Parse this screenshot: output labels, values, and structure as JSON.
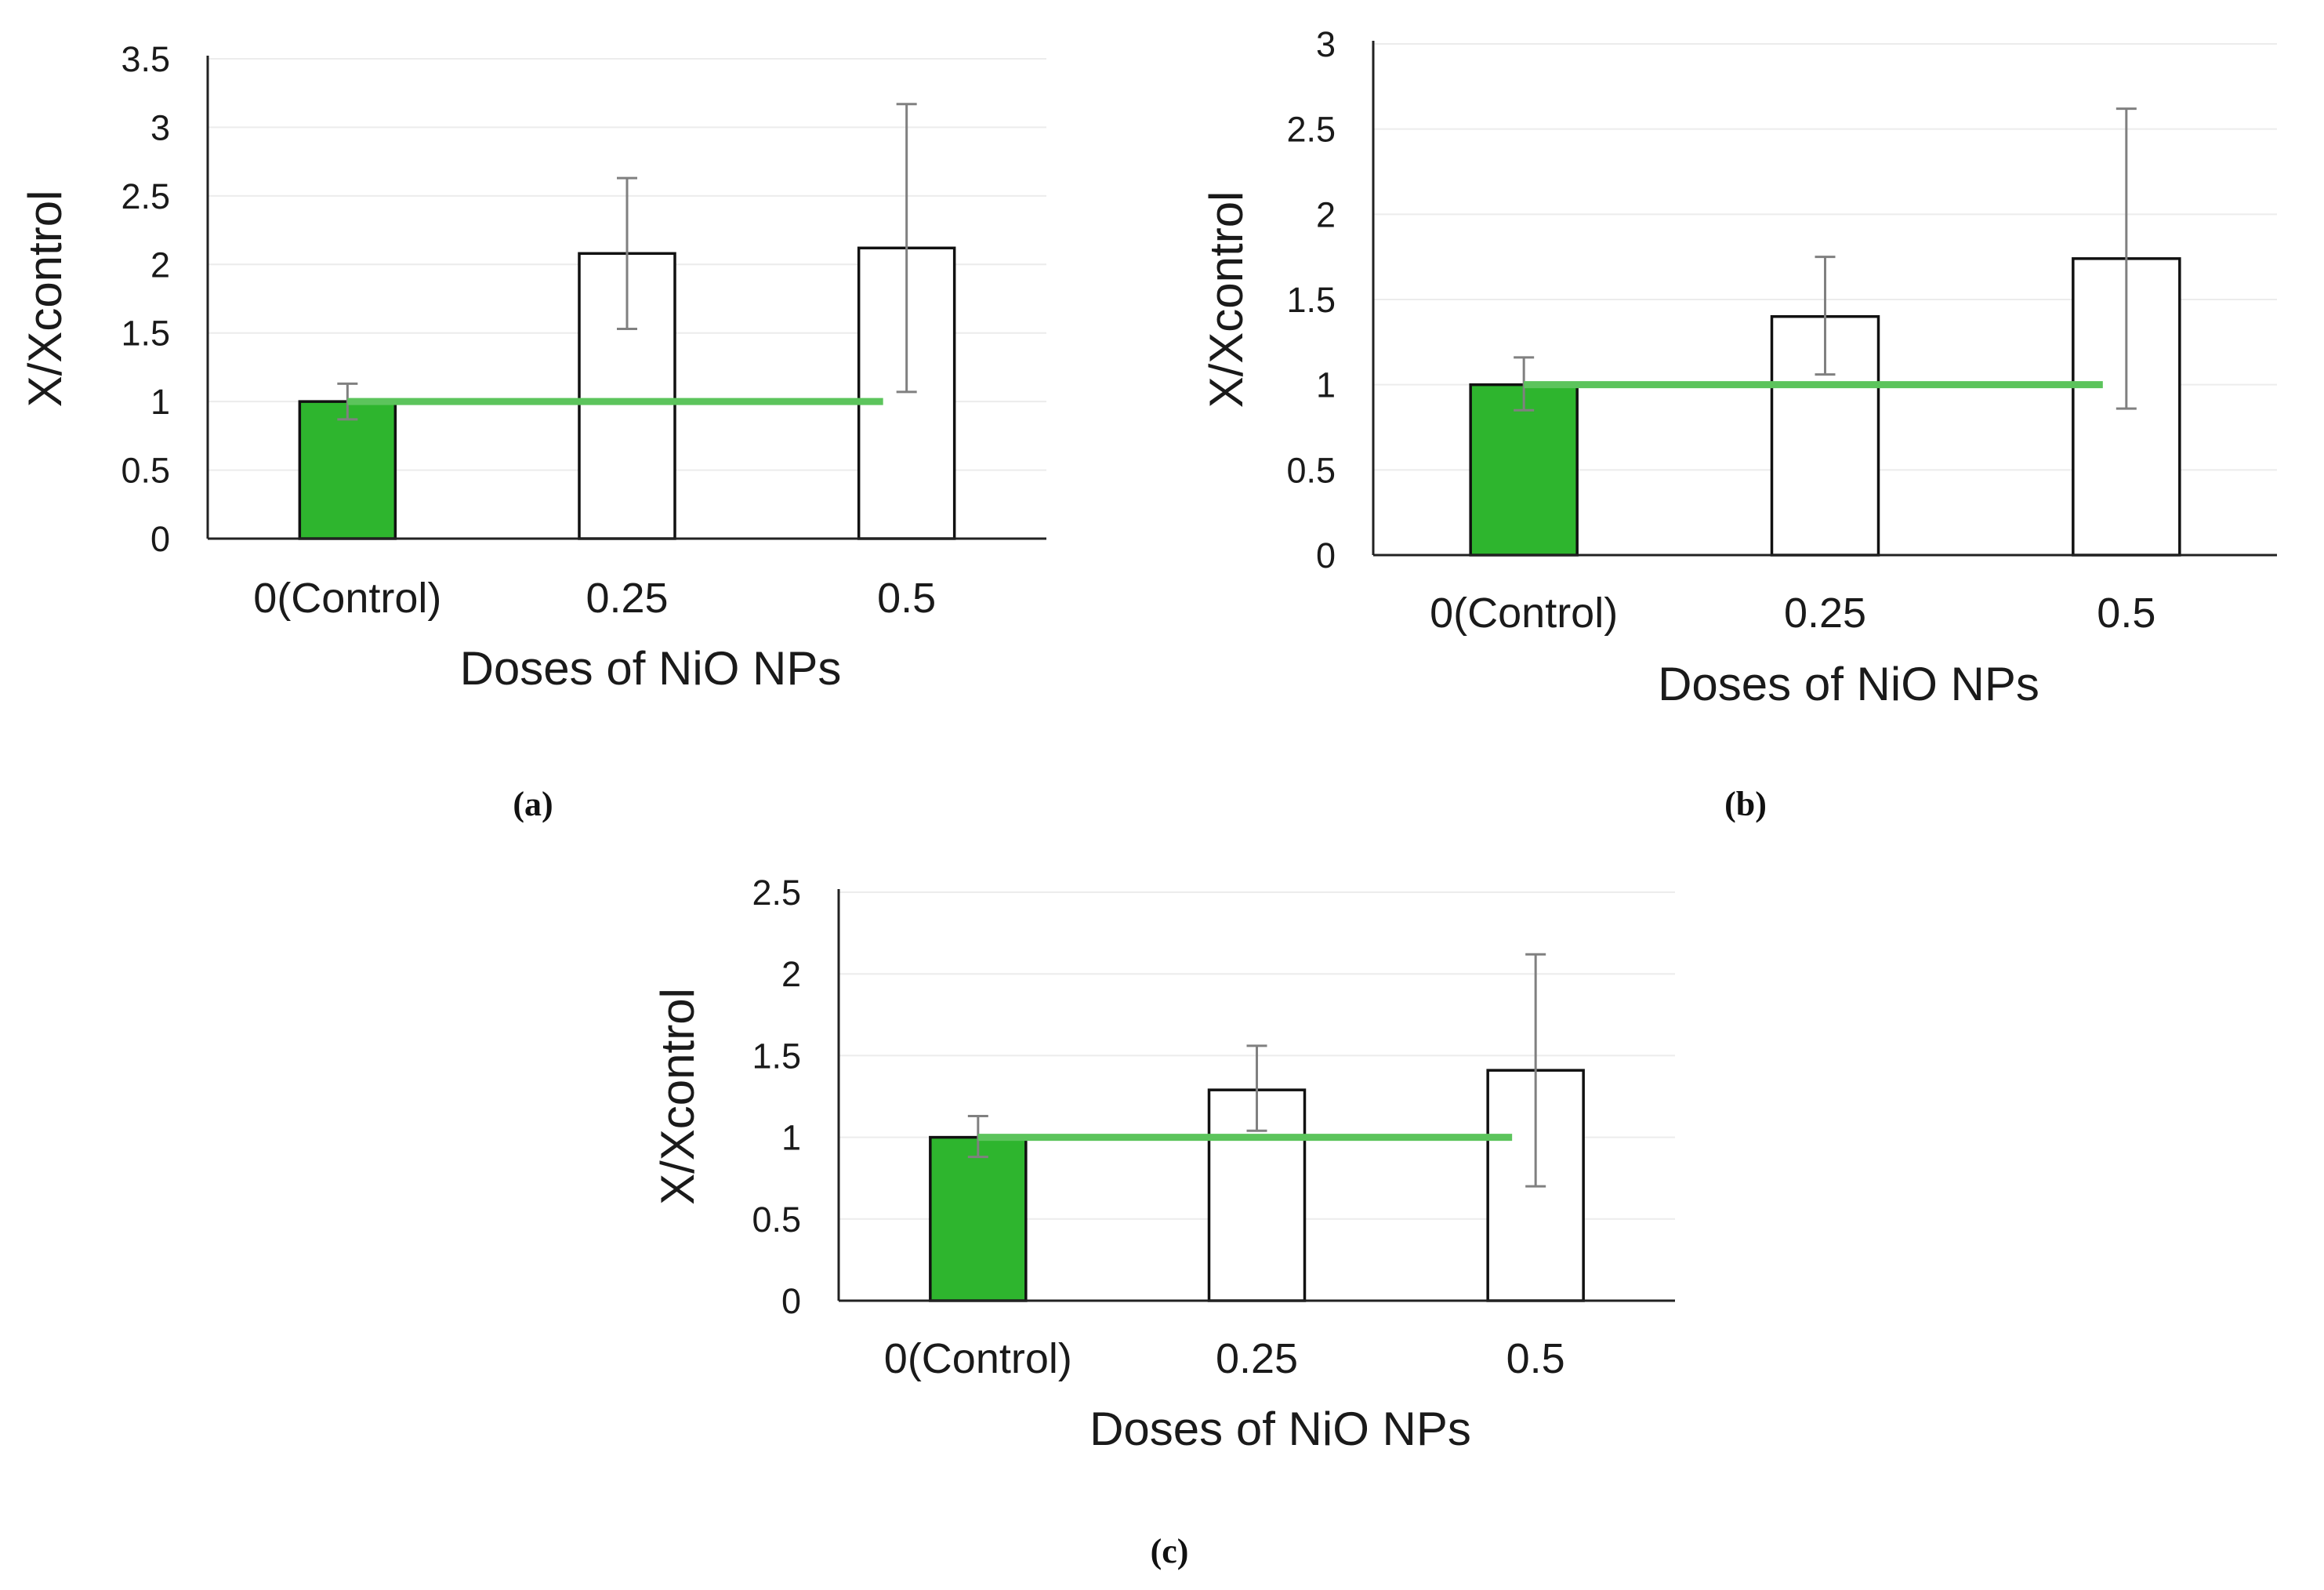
{
  "colors": {
    "control_bar": "#2eb52e",
    "treatment_bar": "#ffffff",
    "bar_border": "#111111",
    "reference_line": "#5cc45c",
    "error_bar": "#808080",
    "gridline": "#ececec",
    "axis": "#222222"
  },
  "chart_data": [
    {
      "type": "bar",
      "panel_label": "(a)",
      "title": "",
      "xlabel": "Doses of NiO NPs",
      "ylabel": "X/Xcontrol",
      "ylim": [
        0,
        3.5
      ],
      "yticks": [
        0,
        0.5,
        1,
        1.5,
        2,
        2.5,
        3,
        3.5
      ],
      "ytick_labels": [
        "0",
        "0.5",
        "1",
        "1.5",
        "2",
        "2.5",
        "3",
        "3.5"
      ],
      "grid": true,
      "categories": [
        "0(Control)",
        "0.25",
        "0.5"
      ],
      "values": [
        1,
        2.08,
        2.12
      ],
      "error_low": [
        0.87,
        1.53,
        1.07
      ],
      "error_high": [
        1.13,
        2.63,
        3.17
      ],
      "reference_line": 1
    },
    {
      "type": "bar",
      "panel_label": "(b)",
      "title": "",
      "xlabel": "Doses of NiO NPs",
      "ylabel": "X/Xcontrol",
      "ylim": [
        0,
        3
      ],
      "yticks": [
        0,
        0.5,
        1,
        1.5,
        2,
        2.5,
        3
      ],
      "ytick_labels": [
        "0",
        "0.5",
        "1",
        "1.5",
        "2",
        "2.5",
        "3"
      ],
      "grid": true,
      "categories": [
        "0(Control)",
        "0.25",
        "0.5"
      ],
      "values": [
        1,
        1.4,
        1.74
      ],
      "error_low": [
        0.85,
        1.06,
        0.86
      ],
      "error_high": [
        1.16,
        1.75,
        2.62
      ],
      "reference_line": 1
    },
    {
      "type": "bar",
      "panel_label": "(c)",
      "title": "",
      "xlabel": "Doses of NiO NPs",
      "ylabel": "X/Xcontrol",
      "ylim": [
        0,
        2.5
      ],
      "yticks": [
        0,
        0.5,
        1,
        1.5,
        2,
        2.5
      ],
      "ytick_labels": [
        "0",
        "0.5",
        "1",
        "1.5",
        "2",
        "2.5"
      ],
      "grid": true,
      "categories": [
        "0(Control)",
        "0.25",
        "0.5"
      ],
      "values": [
        1,
        1.29,
        1.41
      ],
      "error_low": [
        0.88,
        1.04,
        0.7
      ],
      "error_high": [
        1.13,
        1.56,
        2.12
      ],
      "reference_line": 1
    }
  ]
}
